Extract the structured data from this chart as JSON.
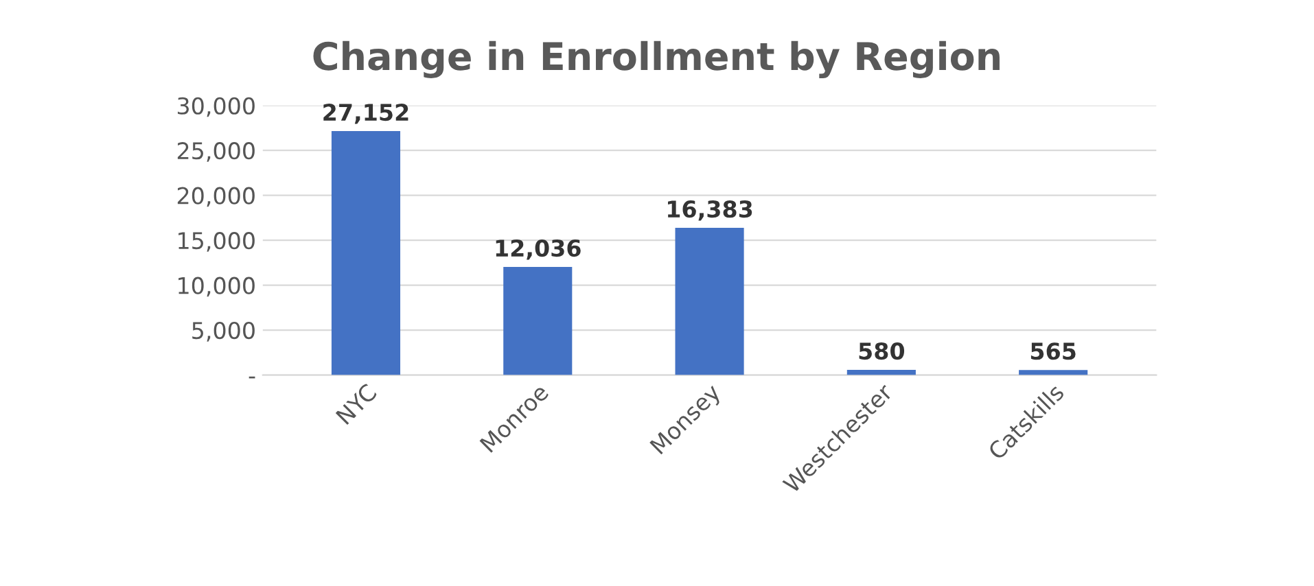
{
  "chart_data": {
    "type": "bar",
    "title": "Change in Enrollment by Region",
    "categories": [
      "NYC",
      "Monroe",
      "Monsey",
      "Westchester",
      "Catskills"
    ],
    "values": [
      27152,
      12036,
      16383,
      580,
      565
    ],
    "value_labels": [
      "27,152",
      "12,036",
      "16,383",
      "580",
      "565"
    ],
    "color": "#4472c4",
    "ylim": [
      0,
      30000
    ],
    "yticks": [
      {
        "value": 0,
        "label": "-"
      },
      {
        "value": 5000,
        "label": "5,000"
      },
      {
        "value": 10000,
        "label": "10,000"
      },
      {
        "value": 15000,
        "label": "15,000"
      },
      {
        "value": 20000,
        "label": "20,000"
      },
      {
        "value": 25000,
        "label": "25,000"
      },
      {
        "value": 30000,
        "label": "30,000"
      }
    ],
    "grid": "y"
  }
}
